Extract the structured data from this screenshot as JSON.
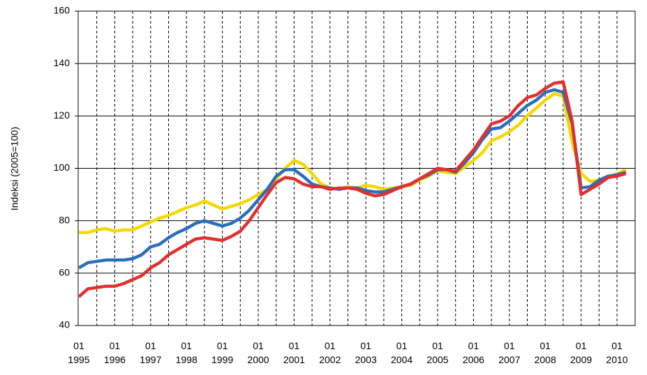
{
  "chart_data": {
    "type": "line",
    "y_label": "Indeksi (2005=100)",
    "categories": [
      "01\n1995",
      null,
      null,
      null,
      "01\n1996",
      null,
      null,
      null,
      "01\n1997",
      null,
      null,
      null,
      "01\n1998",
      null,
      null,
      null,
      "01\n1999",
      null,
      null,
      null,
      "01\n2000",
      null,
      null,
      null,
      "01\n2001",
      null,
      null,
      null,
      "01\n2002",
      null,
      null,
      null,
      "01\n2003",
      null,
      null,
      null,
      "01\n2004",
      null,
      null,
      null,
      "01\n2005",
      null,
      null,
      null,
      "01\n2006",
      null,
      null,
      null,
      "01\n2007",
      null,
      null,
      null,
      "01\n2008",
      null,
      null,
      null,
      "01\n2009",
      null,
      null,
      null,
      "01\n2010",
      null
    ],
    "series": [
      {
        "color": "#f5d800",
        "values": [
          75.5,
          75.5,
          76.5,
          77,
          76,
          76.5,
          76.5,
          78,
          79.5,
          81,
          82,
          83.5,
          85,
          86,
          87.5,
          86,
          84.5,
          85.5,
          86.5,
          88,
          90,
          92,
          96,
          100,
          103,
          101.5,
          98,
          94,
          92.5,
          92,
          93,
          92.5,
          93.5,
          93,
          92,
          92.5,
          93,
          93.5,
          95.5,
          97,
          99,
          98.5,
          98,
          100.5,
          103,
          106,
          110.5,
          112,
          114,
          116.5,
          120,
          123,
          126,
          128.5,
          127.5,
          110,
          98,
          95,
          95.5,
          96.5,
          98,
          99.5
        ]
      },
      {
        "color": "#2a6ebb",
        "values": [
          62,
          64,
          64.5,
          65,
          65,
          65,
          65.5,
          67,
          70,
          71,
          73.5,
          75.5,
          77,
          79,
          80,
          79,
          78,
          79,
          81,
          84,
          88,
          92,
          97,
          99.5,
          99.5,
          97,
          94,
          93,
          92.5,
          92,
          92.5,
          92.5,
          91.5,
          91,
          91,
          92,
          93,
          94,
          96,
          97.5,
          99.5,
          99.5,
          98.5,
          102,
          106,
          111,
          115,
          115.5,
          118,
          121,
          124,
          126,
          129,
          130,
          129,
          117,
          92.5,
          93,
          95.5,
          97,
          97.5,
          98.5
        ]
      },
      {
        "color": "#e03030",
        "values": [
          51,
          54,
          54.5,
          55,
          55,
          56,
          57.5,
          59,
          62,
          64,
          67,
          69,
          71,
          73,
          73.5,
          73,
          72.5,
          74,
          76,
          80,
          85,
          90,
          94.5,
          96.5,
          96,
          94,
          93,
          93,
          92,
          92.5,
          92.5,
          92,
          90.5,
          89.5,
          90,
          91.5,
          93,
          94,
          96,
          98,
          100,
          99.5,
          99,
          103,
          107,
          112,
          117,
          118,
          120,
          124,
          127,
          128,
          130.5,
          132.5,
          133,
          118,
          90,
          92,
          94,
          96.5,
          97,
          98
        ]
      }
    ],
    "ylim": [
      40,
      160
    ],
    "yticks": [
      40,
      60,
      80,
      100,
      120,
      140,
      160
    ],
    "grid": true
  }
}
